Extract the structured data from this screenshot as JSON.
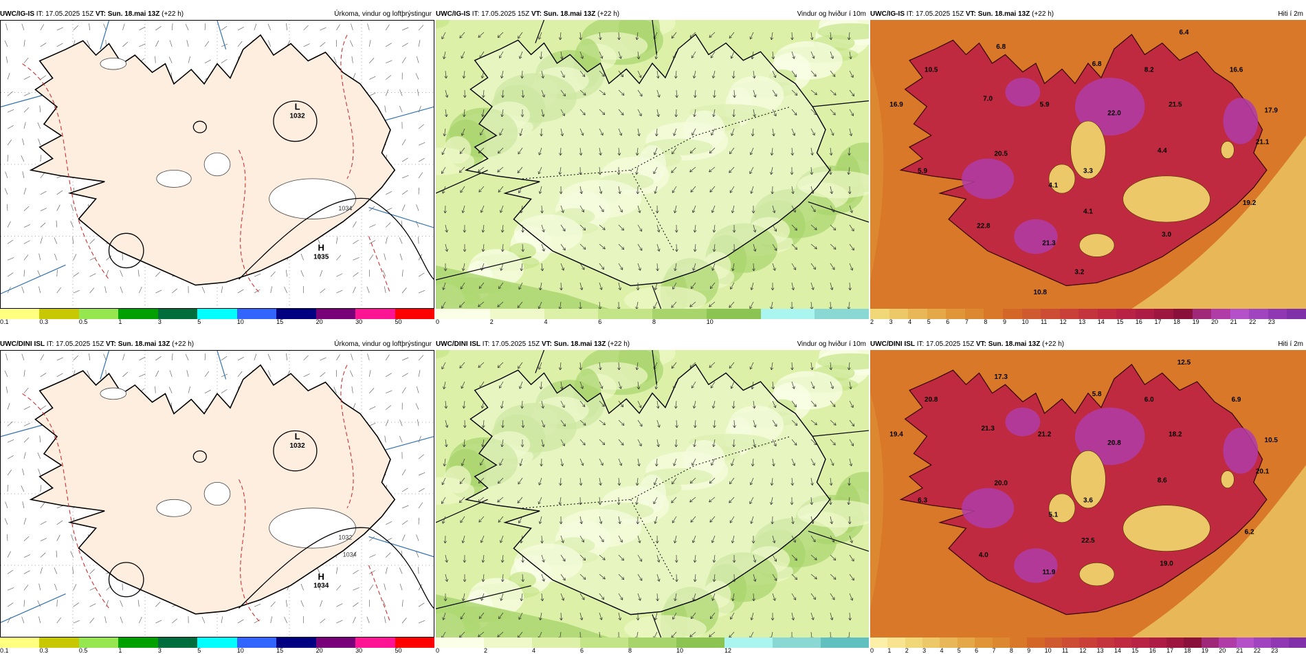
{
  "panels": [
    {
      "id": "p1",
      "model": "UWC/IG-IS",
      "it_label": "IT:",
      "it": "17.05.2025 15Z",
      "vt_label": "VT:",
      "vt": "Sun. 18.mai 13Z",
      "lead": "(+22 h)",
      "title": "Úrkoma, vindur og loftþrýstingur",
      "type": "precip",
      "colorbar": [
        "#ffff80",
        "#c8c800",
        "#96e650",
        "#00a000",
        "#006e3c",
        "#00ffff",
        "#3264ff",
        "#000080",
        "#780078",
        "#ff1493",
        "#ff0000"
      ],
      "ticks": [
        "0.1",
        "0.3",
        "0.5",
        "1",
        "3",
        "5",
        "10",
        "15",
        "20",
        "30",
        "50"
      ],
      "pressure_labels": [
        {
          "letter": "L",
          "value": "1032"
        },
        {
          "letter": "H",
          "value": "1035"
        }
      ],
      "isobar_label": "1034"
    },
    {
      "id": "p2",
      "model": "UWC/IG-IS",
      "it_label": "IT:",
      "it": "17.05.2025 15Z",
      "vt_label": "VT:",
      "vt": "Sun. 18.mai 13Z",
      "lead": "(+22 h)",
      "title": "Vindur og hviður í 10m",
      "type": "wind",
      "colorbar": [
        "#fbffe8",
        "#eef8c8",
        "#dcf0a8",
        "#c4e488",
        "#a8d46c",
        "#8cc454",
        "#aaf5f0",
        "#8ad8d4"
      ],
      "ticks": [
        "0",
        "2",
        "4",
        "6",
        "8",
        "10"
      ]
    },
    {
      "id": "p3",
      "model": "UWC/IG-IS",
      "it_label": "IT:",
      "it": "17.05.2025 15Z",
      "vt_label": "VT:",
      "vt": "Sun. 18.mai 13Z",
      "lead": "(+22 h)",
      "title": "Hiti í 2m",
      "type": "temp",
      "colorbar": [
        "#f0d878",
        "#ecc868",
        "#e8b858",
        "#e4a848",
        "#e09638",
        "#dc8830",
        "#d87828",
        "#d46628",
        "#d05a30",
        "#cc4c34",
        "#c84038",
        "#c4343c",
        "#c02a40",
        "#b82244",
        "#ac1c44",
        "#9c1640",
        "#8a103c",
        "#a02878",
        "#b03ca8",
        "#b450c8",
        "#a044c0",
        "#9038b4",
        "#8030a8"
      ],
      "ticks": [
        "2",
        "3",
        "4",
        "5",
        "6",
        "7",
        "8",
        "9",
        "10",
        "11",
        "12",
        "13",
        "14",
        "15",
        "16",
        "17",
        "18",
        "19",
        "20",
        "21",
        "22",
        "23"
      ],
      "values": [
        "6.4",
        "6.8",
        "10.5",
        "6.8",
        "8.2",
        "16.6",
        "16.9",
        "7.0",
        "5.9",
        "22.0",
        "21.5",
        "17.9",
        "20.5",
        "4.4",
        "21.1",
        "5.9",
        "4.1",
        "3.3",
        "19.2",
        "4.1",
        "22.8",
        "21.3",
        "3.0",
        "3.2",
        "10.8"
      ]
    },
    {
      "id": "p4",
      "model": "UWC/DINI ISL",
      "it_label": "IT:",
      "it": "17.05.2025 15Z",
      "vt_label": "VT:",
      "vt": "Sun. 18.mai 13Z",
      "lead": "(+22 h)",
      "title": "Úrkoma, vindur og loftþrýstingur",
      "type": "precip",
      "colorbar": [
        "#ffff80",
        "#c8c800",
        "#96e650",
        "#00a000",
        "#006e3c",
        "#00ffff",
        "#3264ff",
        "#000080",
        "#780078",
        "#ff1493",
        "#ff0000"
      ],
      "ticks": [
        "0.1",
        "0.3",
        "0.5",
        "1",
        "3",
        "5",
        "10",
        "15",
        "20",
        "30",
        "50"
      ],
      "pressure_labels": [
        {
          "letter": "L",
          "value": "1032"
        },
        {
          "letter": "H",
          "value": "1034"
        }
      ],
      "isobar_label": "1032",
      "isobar_label2": "1034"
    },
    {
      "id": "p5",
      "model": "UWC/DINI ISL",
      "it_label": "IT:",
      "it": "17.05.2025 15Z",
      "vt_label": "VT:",
      "vt": "Sun. 18.mai 13Z",
      "lead": "(+22 h)",
      "title": "Vindur og hviður í 10m",
      "type": "wind",
      "colorbar": [
        "#fbffe8",
        "#eef8c8",
        "#dcf0a8",
        "#c4e488",
        "#a8d46c",
        "#8cc454",
        "#aaf5f0",
        "#8ad8d4",
        "#60c0c0"
      ],
      "ticks": [
        "0",
        "2",
        "4",
        "6",
        "8",
        "10",
        "12"
      ]
    },
    {
      "id": "p6",
      "model": "UWC/DINI ISL",
      "it_label": "IT:",
      "it": "17.05.2025 15Z",
      "vt_label": "VT:",
      "vt": "Sun. 18.mai 13Z",
      "lead": "(+22 h)",
      "title": "Hiti í 2m",
      "type": "temp",
      "colorbar": [
        "#fcf0a8",
        "#f8e490",
        "#f0d878",
        "#ecc868",
        "#e8b858",
        "#e4a848",
        "#e09638",
        "#dc8830",
        "#d87828",
        "#d46628",
        "#d05a30",
        "#cc4c34",
        "#c84038",
        "#c4343c",
        "#c02a40",
        "#b82244",
        "#ac1c44",
        "#9c1640",
        "#8a103c",
        "#a02878",
        "#b03ca8",
        "#b450c8",
        "#a044c0",
        "#9038b4",
        "#8030a8"
      ],
      "ticks": [
        "0",
        "1",
        "2",
        "3",
        "4",
        "5",
        "6",
        "7",
        "8",
        "9",
        "10",
        "11",
        "12",
        "13",
        "14",
        "15",
        "16",
        "17",
        "18",
        "19",
        "20",
        "21",
        "22",
        "23"
      ],
      "values": [
        "12.5",
        "17.3",
        "20.8",
        "5.8",
        "6.0",
        "6.9",
        "19.4",
        "21.3",
        "21.2",
        "20.8",
        "18.2",
        "10.5",
        "20.0",
        "8.6",
        "20.1",
        "6.3",
        "5.1",
        "3.6",
        "6.2",
        "22.5",
        "4.0",
        "11.9",
        "19.0"
      ]
    }
  ]
}
